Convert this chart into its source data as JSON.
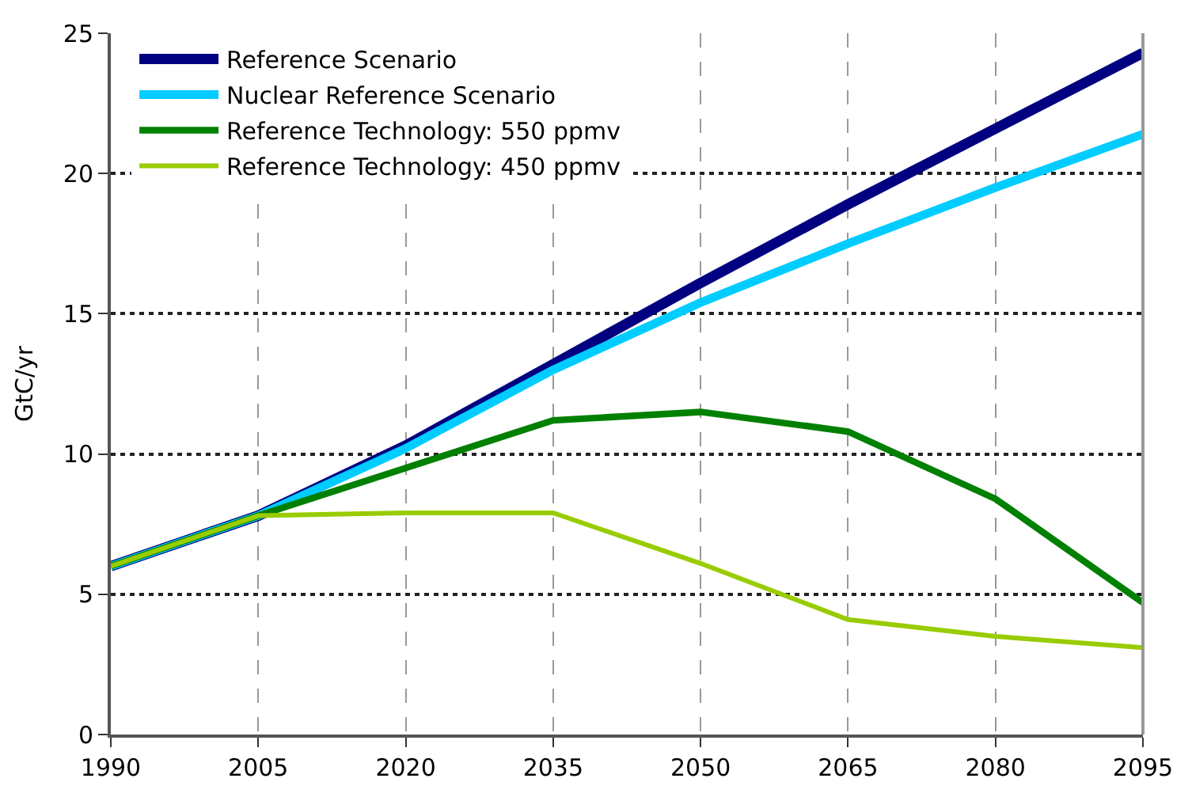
{
  "chart_data": {
    "type": "line",
    "ylabel": "GtC/yr",
    "x": [
      1990,
      2005,
      2020,
      2035,
      2050,
      2065,
      2080,
      2095
    ],
    "xlim": [
      1990,
      2095
    ],
    "xticks": [
      1990,
      2005,
      2020,
      2035,
      2050,
      2065,
      2080,
      2095
    ],
    "ylim": [
      0,
      25
    ],
    "yticks": [
      0,
      5,
      10,
      15,
      20,
      25
    ],
    "grid": true,
    "legend": "top left",
    "marker": "none",
    "line_style": "solid",
    "series": [
      {
        "name": "Reference Scenario",
        "color": "#000080",
        "values": [
          6.0,
          7.8,
          10.3,
          13.2,
          16.1,
          18.9,
          21.6,
          24.3
        ]
      },
      {
        "name": "Nuclear Reference Scenario",
        "color": "#00ccff",
        "values": [
          6.0,
          7.8,
          10.2,
          13.0,
          15.4,
          17.5,
          19.5,
          21.4
        ]
      },
      {
        "name": "Reference Technology: 550 ppmv",
        "color": "#008000",
        "values": [
          6.0,
          7.8,
          9.5,
          11.2,
          11.5,
          10.8,
          8.4,
          4.7
        ]
      },
      {
        "name": "Reference Technology: 450 ppmv",
        "color": "#99cc00",
        "values": [
          6.0,
          7.8,
          7.9,
          7.9,
          6.1,
          4.1,
          3.5,
          3.1
        ]
      }
    ]
  }
}
